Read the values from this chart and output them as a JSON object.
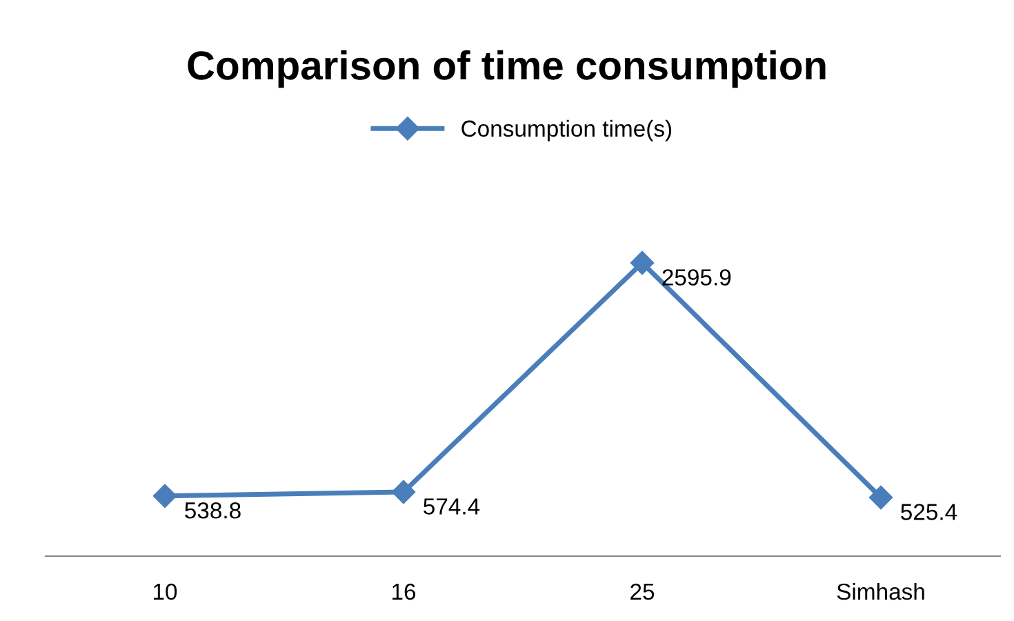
{
  "chart_data": {
    "type": "line",
    "title": "Comparison of time consumption",
    "categories": [
      "10",
      "16",
      "25",
      "Simhash"
    ],
    "series": [
      {
        "name": "Consumption time(s)",
        "color": "#4a7ebb",
        "values": [
          538.8,
          574.4,
          2595.9,
          525.4
        ]
      }
    ],
    "tick_labels": "x",
    "data_labels": true,
    "legend": "top",
    "marker": "diamond",
    "line_style": "solid",
    "grid": false
  }
}
